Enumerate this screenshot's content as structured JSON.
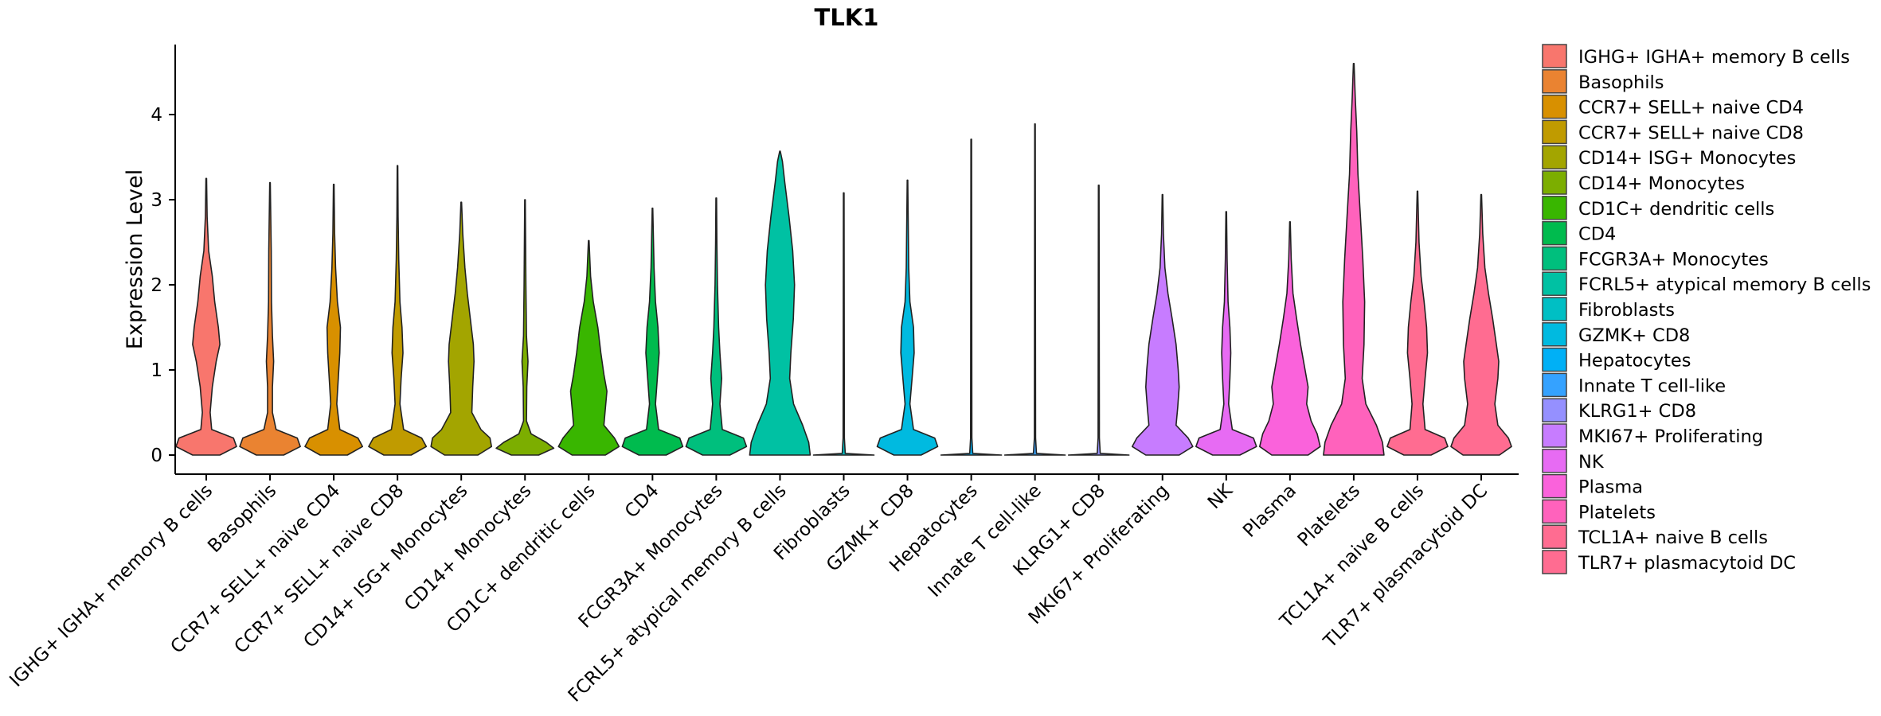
{
  "chart_data": {
    "type": "violin",
    "title": "TLK1",
    "xlabel": "",
    "ylabel": "Expression Level",
    "ylim": [
      -0.24,
      4.85
    ],
    "yticks": [
      0,
      1,
      2,
      3,
      4
    ],
    "ytick_labels": [
      "0",
      "1",
      "2",
      "3",
      "4"
    ],
    "grid": false,
    "legend_position": "right",
    "categories": [
      "IGHG+ IGHA+ memory B cells",
      "Basophils",
      "CCR7+ SELL+ naive CD4",
      "CCR7+ SELL+ naive CD8",
      "CD14+ ISG+ Monocytes",
      "CD14+ Monocytes",
      "CD1C+ dendritic cells",
      "CD4",
      "FCGR3A+ Monocytes",
      "FCRL5+ atypical memory B cells",
      "Fibroblasts",
      "GZMK+ CD8",
      "Hepatocytes",
      "Innate T cell-like",
      "KLRG1+ CD8",
      "MKI67+ Proliferating",
      "NK",
      "Plasma",
      "Platelets",
      "TCL1A+ naive B cells",
      "TLR7+ plasmacytoid DC"
    ],
    "legend_labels": [
      " IGHG+ IGHA+ memory B cells",
      "Basophils",
      "CCR7+ SELL+ naive CD4",
      "CCR7+ SELL+ naive CD8",
      "CD14+ ISG+ Monocytes",
      "CD14+ Monocytes",
      "CD1C+ dendritic cells",
      "CD4",
      "FCGR3A+ Monocytes",
      "FCRL5+ atypical memory B cells",
      "Fibroblasts",
      "GZMK+ CD8",
      "Hepatocytes",
      "Innate T cell-like",
      "KLRG1+ CD8",
      "MKI67+ Proliferating",
      "NK",
      "Plasma",
      "Platelets",
      "TCL1A+ naive B cells",
      "TLR7+ plasmacytoid DC"
    ],
    "colors": [
      "#F8766D",
      "#EA8331",
      "#D89000",
      "#C09B00",
      "#A3A500",
      "#7CAE00",
      "#39B600",
      "#00BB4E",
      "#00BF7D",
      "#00C1A3",
      "#00BFC4",
      "#00BAE0",
      "#00B0F6",
      "#35A2FF",
      "#9590FF",
      "#C77CFF",
      "#E76BF3",
      "#FA62DB",
      "#FF62BC",
      "#FF6C91",
      "#FF6C91"
    ],
    "series": [
      {
        "name": "IGHG+ IGHA+ memory B cells",
        "max": 3.25,
        "profile": [
          [
            0.0,
            0.45
          ],
          [
            0.1,
            1.0
          ],
          [
            0.2,
            0.9
          ],
          [
            0.3,
            0.18
          ],
          [
            0.5,
            0.13
          ],
          [
            0.8,
            0.2
          ],
          [
            1.1,
            0.33
          ],
          [
            1.3,
            0.45
          ],
          [
            1.5,
            0.4
          ],
          [
            1.8,
            0.28
          ],
          [
            2.1,
            0.2
          ],
          [
            2.4,
            0.08
          ],
          [
            2.8,
            0.03
          ],
          [
            3.25,
            0.01
          ]
        ]
      },
      {
        "name": "Basophils",
        "max": 3.2,
        "profile": [
          [
            0.0,
            0.45
          ],
          [
            0.1,
            1.0
          ],
          [
            0.2,
            0.9
          ],
          [
            0.3,
            0.2
          ],
          [
            0.5,
            0.08
          ],
          [
            0.8,
            0.08
          ],
          [
            1.1,
            0.12
          ],
          [
            1.4,
            0.08
          ],
          [
            1.8,
            0.05
          ],
          [
            2.4,
            0.04
          ],
          [
            3.2,
            0.01
          ]
        ]
      },
      {
        "name": "CCR7+ SELL+ naive CD4",
        "max": 3.18,
        "profile": [
          [
            0.0,
            0.45
          ],
          [
            0.1,
            0.95
          ],
          [
            0.2,
            0.8
          ],
          [
            0.3,
            0.2
          ],
          [
            0.6,
            0.1
          ],
          [
            0.9,
            0.15
          ],
          [
            1.2,
            0.2
          ],
          [
            1.5,
            0.22
          ],
          [
            1.8,
            0.12
          ],
          [
            2.2,
            0.06
          ],
          [
            2.6,
            0.03
          ],
          [
            3.18,
            0.01
          ]
        ]
      },
      {
        "name": "CCR7+ SELL+ naive CD8",
        "max": 3.4,
        "profile": [
          [
            0.0,
            0.45
          ],
          [
            0.1,
            0.95
          ],
          [
            0.2,
            0.8
          ],
          [
            0.3,
            0.2
          ],
          [
            0.6,
            0.08
          ],
          [
            0.9,
            0.12
          ],
          [
            1.2,
            0.18
          ],
          [
            1.5,
            0.15
          ],
          [
            1.8,
            0.08
          ],
          [
            2.3,
            0.04
          ],
          [
            2.8,
            0.02
          ],
          [
            3.4,
            0.01
          ]
        ]
      },
      {
        "name": "CD14+ ISG+ Monocytes",
        "max": 2.97,
        "profile": [
          [
            0.0,
            0.55
          ],
          [
            0.1,
            1.0
          ],
          [
            0.2,
            0.95
          ],
          [
            0.3,
            0.65
          ],
          [
            0.5,
            0.35
          ],
          [
            0.8,
            0.38
          ],
          [
            1.1,
            0.42
          ],
          [
            1.3,
            0.4
          ],
          [
            1.6,
            0.3
          ],
          [
            1.9,
            0.2
          ],
          [
            2.2,
            0.12
          ],
          [
            2.6,
            0.05
          ],
          [
            2.97,
            0.01
          ]
        ]
      },
      {
        "name": "CD14+ Monocytes",
        "max": 3.0,
        "profile": [
          [
            0.0,
            0.45
          ],
          [
            0.08,
            0.95
          ],
          [
            0.15,
            0.7
          ],
          [
            0.25,
            0.2
          ],
          [
            0.4,
            0.05
          ],
          [
            0.8,
            0.06
          ],
          [
            1.1,
            0.1
          ],
          [
            1.4,
            0.05
          ],
          [
            2.0,
            0.03
          ],
          [
            3.0,
            0.01
          ]
        ]
      },
      {
        "name": "CD1C+ dendritic cells",
        "max": 2.52,
        "profile": [
          [
            0.0,
            0.55
          ],
          [
            0.1,
            1.0
          ],
          [
            0.2,
            0.85
          ],
          [
            0.35,
            0.5
          ],
          [
            0.55,
            0.55
          ],
          [
            0.75,
            0.6
          ],
          [
            0.95,
            0.5
          ],
          [
            1.2,
            0.4
          ],
          [
            1.5,
            0.3
          ],
          [
            1.8,
            0.15
          ],
          [
            2.1,
            0.06
          ],
          [
            2.52,
            0.01
          ]
        ]
      },
      {
        "name": "CD4",
        "max": 2.9,
        "profile": [
          [
            0.0,
            0.45
          ],
          [
            0.1,
            1.0
          ],
          [
            0.2,
            0.9
          ],
          [
            0.3,
            0.2
          ],
          [
            0.6,
            0.1
          ],
          [
            0.9,
            0.16
          ],
          [
            1.2,
            0.22
          ],
          [
            1.5,
            0.18
          ],
          [
            1.8,
            0.1
          ],
          [
            2.2,
            0.05
          ],
          [
            2.9,
            0.01
          ]
        ]
      },
      {
        "name": "FCGR3A+ Monocytes",
        "max": 3.02,
        "profile": [
          [
            0.0,
            0.45
          ],
          [
            0.1,
            1.0
          ],
          [
            0.2,
            0.9
          ],
          [
            0.3,
            0.2
          ],
          [
            0.6,
            0.12
          ],
          [
            0.9,
            0.18
          ],
          [
            1.2,
            0.12
          ],
          [
            1.5,
            0.08
          ],
          [
            2.0,
            0.04
          ],
          [
            2.5,
            0.02
          ],
          [
            3.02,
            0.01
          ]
        ]
      },
      {
        "name": "FCRL5+ atypical memory B cells",
        "max": 3.57,
        "profile": [
          [
            0.0,
            1.0
          ],
          [
            0.15,
            0.95
          ],
          [
            0.35,
            0.75
          ],
          [
            0.6,
            0.45
          ],
          [
            0.9,
            0.32
          ],
          [
            1.2,
            0.36
          ],
          [
            1.6,
            0.44
          ],
          [
            2.0,
            0.48
          ],
          [
            2.4,
            0.42
          ],
          [
            2.8,
            0.3
          ],
          [
            3.2,
            0.16
          ],
          [
            3.45,
            0.08
          ],
          [
            3.57,
            0.01
          ]
        ]
      },
      {
        "name": "Fibroblasts",
        "max": 3.08,
        "profile": [
          [
            0.0,
            1.0
          ],
          [
            0.02,
            0.05
          ],
          [
            0.2,
            0.02
          ],
          [
            3.08,
            0.01
          ]
        ]
      },
      {
        "name": "GZMK+ CD8",
        "max": 3.23,
        "profile": [
          [
            0.0,
            0.45
          ],
          [
            0.1,
            1.0
          ],
          [
            0.2,
            0.9
          ],
          [
            0.3,
            0.2
          ],
          [
            0.6,
            0.08
          ],
          [
            0.9,
            0.15
          ],
          [
            1.2,
            0.22
          ],
          [
            1.5,
            0.2
          ],
          [
            1.8,
            0.08
          ],
          [
            2.2,
            0.04
          ],
          [
            3.23,
            0.01
          ]
        ]
      },
      {
        "name": "Hepatocytes",
        "max": 3.71,
        "profile": [
          [
            0.0,
            1.0
          ],
          [
            0.02,
            0.05
          ],
          [
            0.2,
            0.02
          ],
          [
            3.71,
            0.01
          ]
        ]
      },
      {
        "name": "Innate T cell-like",
        "max": 3.89,
        "profile": [
          [
            0.0,
            1.0
          ],
          [
            0.02,
            0.05
          ],
          [
            0.2,
            0.02
          ],
          [
            3.89,
            0.01
          ]
        ]
      },
      {
        "name": "KLRG1+ CD8",
        "max": 3.17,
        "profile": [
          [
            0.0,
            1.0
          ],
          [
            0.02,
            0.05
          ],
          [
            0.2,
            0.02
          ],
          [
            3.17,
            0.01
          ]
        ]
      },
      {
        "name": "MKI67+ Proliferating",
        "max": 3.06,
        "profile": [
          [
            0.0,
            0.55
          ],
          [
            0.1,
            1.0
          ],
          [
            0.2,
            0.85
          ],
          [
            0.35,
            0.45
          ],
          [
            0.55,
            0.5
          ],
          [
            0.8,
            0.55
          ],
          [
            1.0,
            0.52
          ],
          [
            1.3,
            0.45
          ],
          [
            1.6,
            0.32
          ],
          [
            1.9,
            0.18
          ],
          [
            2.2,
            0.08
          ],
          [
            2.6,
            0.03
          ],
          [
            3.06,
            0.01
          ]
        ]
      },
      {
        "name": "NK",
        "max": 2.86,
        "profile": [
          [
            0.0,
            0.45
          ],
          [
            0.1,
            1.0
          ],
          [
            0.2,
            0.9
          ],
          [
            0.3,
            0.2
          ],
          [
            0.6,
            0.08
          ],
          [
            0.9,
            0.12
          ],
          [
            1.2,
            0.15
          ],
          [
            1.5,
            0.12
          ],
          [
            1.8,
            0.06
          ],
          [
            2.3,
            0.03
          ],
          [
            2.86,
            0.01
          ]
        ]
      },
      {
        "name": "Plasma",
        "max": 2.74,
        "profile": [
          [
            0.0,
            0.6
          ],
          [
            0.1,
            1.0
          ],
          [
            0.25,
            0.9
          ],
          [
            0.4,
            0.7
          ],
          [
            0.6,
            0.55
          ],
          [
            0.8,
            0.6
          ],
          [
            1.0,
            0.5
          ],
          [
            1.3,
            0.35
          ],
          [
            1.6,
            0.22
          ],
          [
            1.9,
            0.1
          ],
          [
            2.3,
            0.04
          ],
          [
            2.74,
            0.01
          ]
        ]
      },
      {
        "name": "Platelets",
        "max": 4.6,
        "profile": [
          [
            0.0,
            1.0
          ],
          [
            0.15,
            0.95
          ],
          [
            0.35,
            0.75
          ],
          [
            0.6,
            0.4
          ],
          [
            0.9,
            0.28
          ],
          [
            1.3,
            0.34
          ],
          [
            1.8,
            0.36
          ],
          [
            2.3,
            0.3
          ],
          [
            2.8,
            0.22
          ],
          [
            3.3,
            0.14
          ],
          [
            3.8,
            0.1
          ],
          [
            4.2,
            0.05
          ],
          [
            4.6,
            0.01
          ]
        ]
      },
      {
        "name": "TCL1A+ naive B cells",
        "max": 3.1,
        "profile": [
          [
            0.0,
            0.45
          ],
          [
            0.1,
            1.0
          ],
          [
            0.2,
            0.9
          ],
          [
            0.3,
            0.25
          ],
          [
            0.6,
            0.18
          ],
          [
            0.9,
            0.25
          ],
          [
            1.2,
            0.33
          ],
          [
            1.5,
            0.3
          ],
          [
            1.8,
            0.22
          ],
          [
            2.1,
            0.12
          ],
          [
            2.5,
            0.05
          ],
          [
            3.1,
            0.01
          ]
        ]
      },
      {
        "name": "TLR7+ plasmacytoid DC",
        "max": 3.06,
        "profile": [
          [
            0.0,
            0.6
          ],
          [
            0.1,
            1.0
          ],
          [
            0.2,
            0.9
          ],
          [
            0.35,
            0.55
          ],
          [
            0.6,
            0.45
          ],
          [
            0.9,
            0.55
          ],
          [
            1.1,
            0.58
          ],
          [
            1.3,
            0.5
          ],
          [
            1.6,
            0.38
          ],
          [
            1.9,
            0.24
          ],
          [
            2.2,
            0.12
          ],
          [
            2.6,
            0.05
          ],
          [
            3.06,
            0.01
          ]
        ]
      }
    ]
  }
}
